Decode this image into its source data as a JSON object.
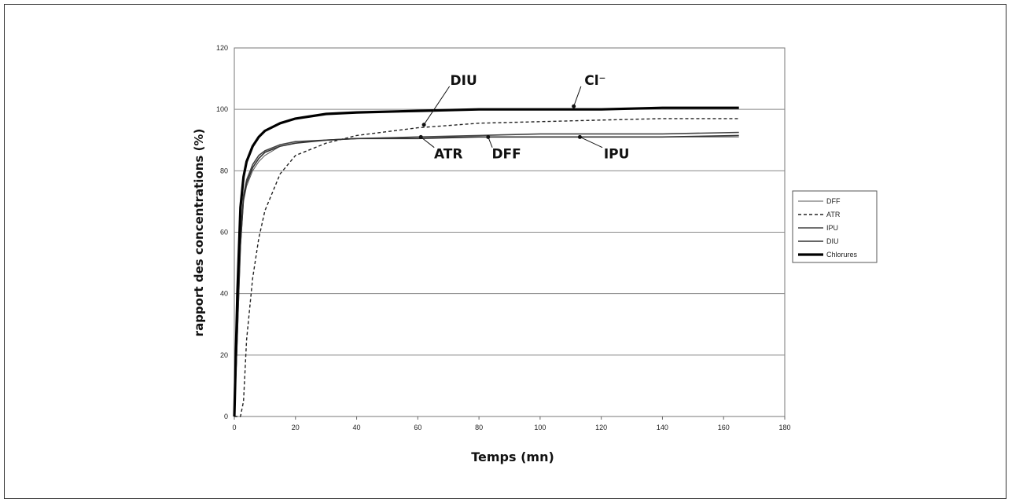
{
  "chart_data": {
    "type": "line",
    "xlabel": "Temps (mn)",
    "ylabel": "rapport des concentrations (%)",
    "xlim": [
      0,
      180
    ],
    "ylim": [
      0,
      120
    ],
    "x_ticks": [
      "0",
      "20",
      "40",
      "60",
      "80",
      "100",
      "120",
      "140",
      "160",
      "180"
    ],
    "y_ticks": [
      "0",
      "20",
      "40",
      "60",
      "80",
      "100",
      "120"
    ],
    "grid": "horizontal",
    "legend_position": "right",
    "series": [
      {
        "name": "DFF",
        "color": "#555555",
        "style": "thin-solid",
        "x": [
          0,
          1,
          2,
          3,
          4,
          6,
          8,
          10,
          15,
          20,
          30,
          40,
          60,
          80,
          100,
          120,
          140,
          165
        ],
        "y": [
          0,
          25,
          55,
          70,
          75,
          80,
          83,
          85,
          88,
          89,
          90,
          90.5,
          91,
          91,
          91,
          91,
          91,
          91
        ]
      },
      {
        "name": "ATR",
        "color": "#222222",
        "style": "dashed",
        "x": [
          0,
          1,
          2,
          3,
          4,
          6,
          8,
          10,
          15,
          20,
          30,
          40,
          60,
          80,
          100,
          120,
          140,
          165
        ],
        "y": [
          0,
          0,
          0,
          5,
          25,
          45,
          58,
          67,
          79,
          85,
          89,
          91.5,
          94,
          95.5,
          96,
          96.5,
          97,
          97
        ]
      },
      {
        "name": "IPU",
        "color": "#444444",
        "style": "solid-marker",
        "x": [
          0,
          1,
          2,
          3,
          4,
          6,
          8,
          10,
          15,
          20,
          30,
          40,
          60,
          80,
          100,
          120,
          140,
          165
        ],
        "y": [
          0,
          30,
          58,
          72,
          77,
          82,
          85,
          86.5,
          88.5,
          89.5,
          90,
          90.5,
          91,
          91.5,
          92,
          92,
          92,
          92.5
        ]
      },
      {
        "name": "DIU",
        "color": "#333333",
        "style": "solid-marker",
        "x": [
          0,
          1,
          2,
          3,
          4,
          6,
          8,
          10,
          15,
          20,
          30,
          40,
          60,
          80,
          100,
          120,
          140,
          165
        ],
        "y": [
          0,
          28,
          56,
          71,
          76,
          81,
          84,
          86,
          88,
          89,
          90,
          90.5,
          90.5,
          91,
          91,
          91,
          91,
          91.5
        ]
      },
      {
        "name": "Chlorures",
        "color": "#000000",
        "style": "thick-solid",
        "x": [
          0,
          1,
          2,
          3,
          4,
          6,
          8,
          10,
          15,
          20,
          30,
          40,
          60,
          80,
          100,
          120,
          140,
          165
        ],
        "y": [
          0,
          40,
          68,
          78,
          83,
          88,
          91,
          93,
          95.5,
          97,
          98.5,
          99,
          99.5,
          100,
          100,
          100,
          100.5,
          100.5
        ]
      }
    ],
    "annotations": [
      {
        "text": "DIU",
        "x": 75,
        "y": 108,
        "arrow_x": 62,
        "arrow_y": 95
      },
      {
        "text": "Cl⁻",
        "x": 118,
        "y": 108,
        "arrow_x": 111,
        "arrow_y": 101
      },
      {
        "text": "ATR",
        "x": 70,
        "y": 84,
        "arrow_x": 61,
        "arrow_y": 91
      },
      {
        "text": "DFF",
        "x": 89,
        "y": 84,
        "arrow_x": 83,
        "arrow_y": 91
      },
      {
        "text": "IPU",
        "x": 125,
        "y": 84,
        "arrow_x": 113,
        "arrow_y": 91
      }
    ]
  }
}
